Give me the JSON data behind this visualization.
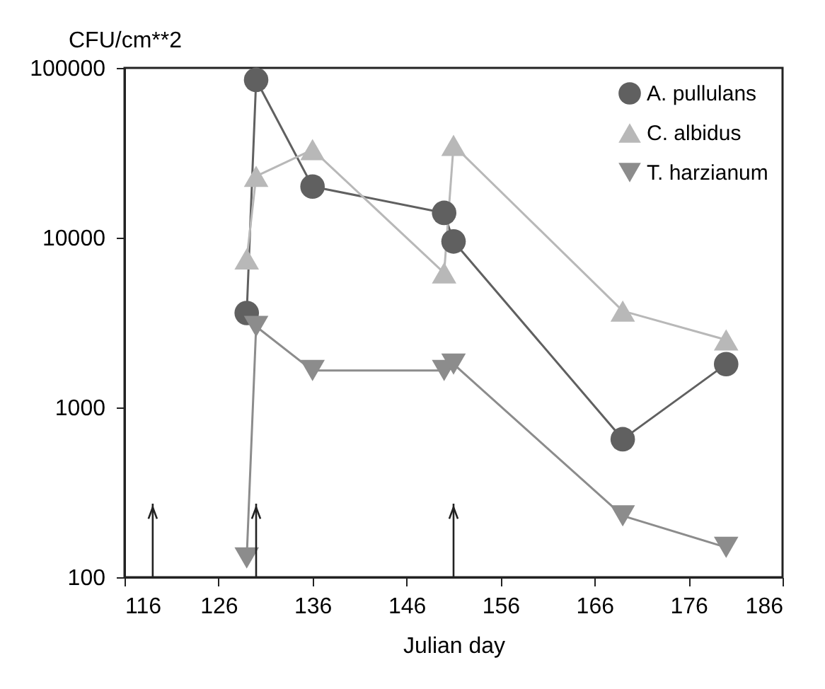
{
  "chart_data": {
    "type": "line",
    "xlabel": "Julian day",
    "ylabel": "CFU/cm**2",
    "xlim": [
      116,
      186
    ],
    "xticks": [
      116,
      126,
      136,
      146,
      156,
      166,
      176,
      186
    ],
    "ylim": [
      100,
      100000
    ],
    "yticks": [
      100,
      1000,
      10000,
      100000
    ],
    "log": "y",
    "grid": false,
    "legend": "top right",
    "x": [
      129,
      130,
      136,
      150,
      151,
      169,
      180
    ],
    "series": [
      {
        "name": "A. pullulans",
        "color": "#606060",
        "marker": "circle",
        "values": [
          3600,
          85000,
          20000,
          14000,
          9500,
          650,
          1800
        ]
      },
      {
        "name": "C. albidus",
        "color": "#b8b8b8",
        "marker": "triangle",
        "values": [
          7500,
          23000,
          33000,
          6200,
          35000,
          3700,
          2500
        ]
      },
      {
        "name": "T. harzianum",
        "color": "#8c8c8c",
        "marker": "triangle-down",
        "values": [
          130,
          3000,
          1650,
          1650,
          1800,
          230,
          150
        ]
      }
    ],
    "ref_lines": [
      {
        "axis": "x",
        "value": 119
      },
      {
        "axis": "x",
        "value": 130
      },
      {
        "axis": "x",
        "value": 151
      }
    ]
  }
}
